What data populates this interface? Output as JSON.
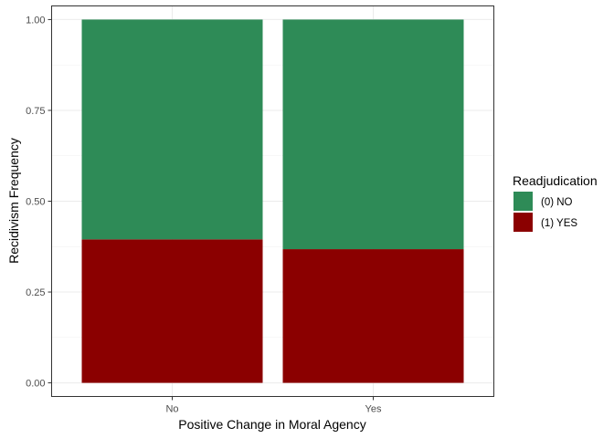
{
  "chart_data": {
    "type": "bar",
    "stacked": true,
    "xlabel": "Positive Change in Moral Agency",
    "ylabel": "Recidivism Frequency",
    "categories": [
      "No",
      "Yes"
    ],
    "series": [
      {
        "name": "(1) YES",
        "values": [
          0.395,
          0.368
        ],
        "color": "#8B0000"
      },
      {
        "name": "(0) NO",
        "values": [
          0.605,
          0.632
        ],
        "color": "#2E8B57"
      }
    ],
    "ylim": [
      -0.0375,
      1.0375
    ],
    "yticks": [
      0.0,
      0.25,
      0.5,
      0.75,
      1.0
    ],
    "yticklabels": [
      "0.00",
      "0.25",
      "0.50",
      "0.75",
      "1.00"
    ],
    "grid": true,
    "legend": {
      "title": "Readjudication",
      "position": "right",
      "entries": [
        "(0) NO",
        "(1) YES"
      ]
    }
  }
}
